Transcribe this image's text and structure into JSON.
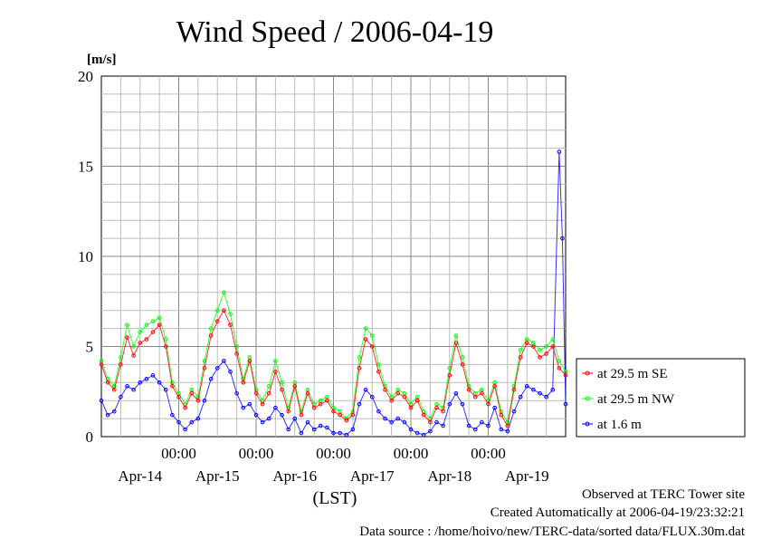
{
  "chart_data": {
    "type": "line",
    "title": "Wind Speed / 2006-04-19",
    "ylabel": "[m/s]",
    "xlabel": "(LST)",
    "ylim": [
      0,
      20
    ],
    "yticks": [
      0,
      5,
      10,
      15,
      20
    ],
    "xlim_hours": [
      0,
      144
    ],
    "xticks": [
      {
        "hour": 24,
        "time": "00:00",
        "date": "Apr-14"
      },
      {
        "hour": 48,
        "time": "00:00",
        "date": "Apr-15"
      },
      {
        "hour": 72,
        "time": "00:00",
        "date": "Apr-16"
      },
      {
        "hour": 96,
        "time": "00:00",
        "date": "Apr-17"
      },
      {
        "hour": 120,
        "time": "00:00",
        "date": "Apr-18"
      },
      {
        "hour": 144,
        "time": "",
        "date": "Apr-19"
      }
    ],
    "grid": true,
    "legend_position": "right",
    "series": [
      {
        "name": "at 29.5 m SE",
        "color": "#ff0000",
        "x": [
          0,
          2,
          4,
          6,
          8,
          10,
          12,
          14,
          16,
          18,
          20,
          22,
          24,
          26,
          28,
          30,
          32,
          34,
          36,
          38,
          40,
          42,
          44,
          46,
          48,
          50,
          52,
          54,
          56,
          58,
          60,
          62,
          64,
          66,
          68,
          70,
          72,
          74,
          76,
          78,
          80,
          82,
          84,
          86,
          88,
          90,
          92,
          94,
          96,
          98,
          100,
          102,
          104,
          106,
          108,
          110,
          112,
          114,
          116,
          118,
          120,
          122,
          124,
          126,
          128,
          130,
          132,
          134,
          136,
          138,
          140,
          142,
          144
        ],
        "y": [
          4.0,
          3.0,
          2.6,
          4.0,
          5.5,
          4.5,
          5.2,
          5.4,
          5.8,
          6.2,
          5.0,
          2.8,
          2.2,
          1.6,
          2.4,
          2.0,
          3.8,
          5.6,
          6.4,
          7.0,
          6.2,
          4.6,
          3.0,
          4.2,
          2.4,
          1.8,
          2.4,
          3.6,
          2.6,
          1.4,
          2.8,
          1.2,
          2.4,
          1.6,
          1.8,
          2.0,
          1.4,
          1.2,
          0.9,
          1.2,
          3.8,
          5.4,
          5.0,
          3.6,
          2.6,
          2.0,
          2.4,
          2.2,
          1.6,
          2.0,
          1.2,
          0.8,
          1.6,
          1.4,
          3.4,
          5.2,
          4.0,
          2.6,
          2.2,
          2.4,
          1.8,
          2.8,
          1.2,
          0.6,
          2.6,
          4.4,
          5.2,
          5.0,
          4.4,
          4.6,
          5.0,
          3.8,
          3.4
        ]
      },
      {
        "name": "at 29.5 m NW",
        "color": "#00ff00",
        "x": [
          0,
          2,
          4,
          6,
          8,
          10,
          12,
          14,
          16,
          18,
          20,
          22,
          24,
          26,
          28,
          30,
          32,
          34,
          36,
          38,
          40,
          42,
          44,
          46,
          48,
          50,
          52,
          54,
          56,
          58,
          60,
          62,
          64,
          66,
          68,
          70,
          72,
          74,
          76,
          78,
          80,
          82,
          84,
          86,
          88,
          90,
          92,
          94,
          96,
          98,
          100,
          102,
          104,
          106,
          108,
          110,
          112,
          114,
          116,
          118,
          120,
          122,
          124,
          126,
          128,
          130,
          132,
          134,
          136,
          138,
          140,
          142,
          144
        ],
        "y": [
          4.2,
          3.2,
          2.8,
          4.4,
          6.2,
          5.0,
          5.8,
          6.2,
          6.4,
          6.6,
          5.4,
          3.0,
          2.4,
          1.8,
          2.6,
          2.2,
          4.2,
          6.0,
          7.0,
          8.0,
          6.8,
          5.0,
          3.2,
          4.4,
          2.6,
          2.0,
          2.8,
          4.2,
          3.0,
          1.6,
          3.0,
          1.4,
          2.6,
          1.8,
          2.0,
          2.2,
          1.6,
          1.4,
          1.0,
          1.4,
          4.4,
          6.0,
          5.6,
          4.0,
          2.8,
          2.2,
          2.6,
          2.4,
          1.8,
          2.2,
          1.4,
          1.0,
          1.8,
          1.6,
          3.8,
          5.6,
          4.4,
          2.8,
          2.4,
          2.6,
          2.0,
          3.0,
          1.4,
          0.8,
          2.8,
          4.8,
          5.4,
          5.2,
          4.8,
          5.0,
          5.4,
          4.2,
          3.6
        ]
      },
      {
        "name": "at 1.6 m",
        "color": "#0000ff",
        "x": [
          0,
          2,
          4,
          6,
          8,
          10,
          12,
          14,
          16,
          18,
          20,
          22,
          24,
          26,
          28,
          30,
          32,
          34,
          36,
          38,
          40,
          42,
          44,
          46,
          48,
          50,
          52,
          54,
          56,
          58,
          60,
          62,
          64,
          66,
          68,
          70,
          72,
          74,
          76,
          78,
          80,
          82,
          84,
          86,
          88,
          90,
          92,
          94,
          96,
          98,
          100,
          102,
          104,
          106,
          108,
          110,
          112,
          114,
          116,
          118,
          120,
          122,
          124,
          126,
          128,
          130,
          132,
          134,
          136,
          138,
          140,
          142,
          143,
          144
        ],
        "y": [
          2.0,
          1.2,
          1.4,
          2.2,
          2.8,
          2.6,
          3.0,
          3.2,
          3.4,
          3.0,
          2.6,
          1.2,
          0.8,
          0.4,
          0.8,
          1.0,
          2.0,
          3.2,
          3.8,
          4.2,
          3.6,
          2.4,
          1.6,
          1.8,
          1.2,
          0.8,
          1.0,
          1.6,
          1.2,
          0.4,
          1.0,
          0.2,
          0.8,
          0.4,
          0.6,
          0.5,
          0.2,
          0.2,
          0.1,
          0.4,
          1.8,
          2.6,
          2.2,
          1.4,
          1.0,
          0.8,
          1.0,
          0.8,
          0.4,
          0.2,
          0.1,
          0.3,
          0.8,
          0.6,
          1.8,
          2.4,
          1.8,
          0.6,
          0.4,
          0.8,
          0.6,
          1.6,
          0.4,
          0.3,
          1.4,
          2.2,
          2.8,
          2.6,
          2.4,
          2.2,
          2.6,
          15.8,
          11.0,
          1.8
        ]
      }
    ]
  },
  "footer": {
    "observed": "Observed at TERC Tower site",
    "created": "Created Automatically at 2006-04-19/23:32:21",
    "source": "Data source : /home/hoivo/new/TERC-data/sorted  data/FLUX.30m.dat"
  }
}
